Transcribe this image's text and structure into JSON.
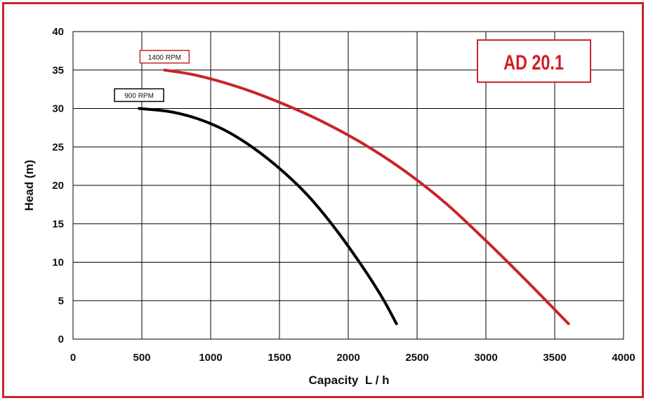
{
  "chart_data": {
    "type": "line",
    "title": "",
    "badge": "AD 20.1",
    "xlabel": "Capacity  L / h",
    "ylabel": "Head (m)",
    "xlim": [
      0,
      4000
    ],
    "ylim": [
      0,
      40
    ],
    "x_ticks": [
      "0",
      "500",
      "1000",
      "1500",
      "2000",
      "2500",
      "3000",
      "3500",
      "4000"
    ],
    "y_ticks": [
      "0",
      "5",
      "10",
      "15",
      "20",
      "25",
      "30",
      "35",
      "40"
    ],
    "grid": true,
    "series": [
      {
        "name": "1400  RPM",
        "color": "#c8252a",
        "points": [
          [
            665,
            35
          ],
          [
            900,
            34.3
          ],
          [
            1200,
            32.8
          ],
          [
            1500,
            30.8
          ],
          [
            1800,
            28.4
          ],
          [
            2100,
            25.5
          ],
          [
            2400,
            22
          ],
          [
            2700,
            17.8
          ],
          [
            3000,
            12.8
          ],
          [
            3300,
            7.5
          ],
          [
            3600,
            2
          ]
        ]
      },
      {
        "name": "900 RPM",
        "color": "#000000",
        "points": [
          [
            480,
            30
          ],
          [
            700,
            29.6
          ],
          [
            900,
            28.7
          ],
          [
            1100,
            27.2
          ],
          [
            1300,
            25
          ],
          [
            1500,
            22.2
          ],
          [
            1700,
            18.8
          ],
          [
            1900,
            14.5
          ],
          [
            2100,
            9.5
          ],
          [
            2250,
            5.3
          ],
          [
            2350,
            2
          ]
        ]
      }
    ]
  }
}
